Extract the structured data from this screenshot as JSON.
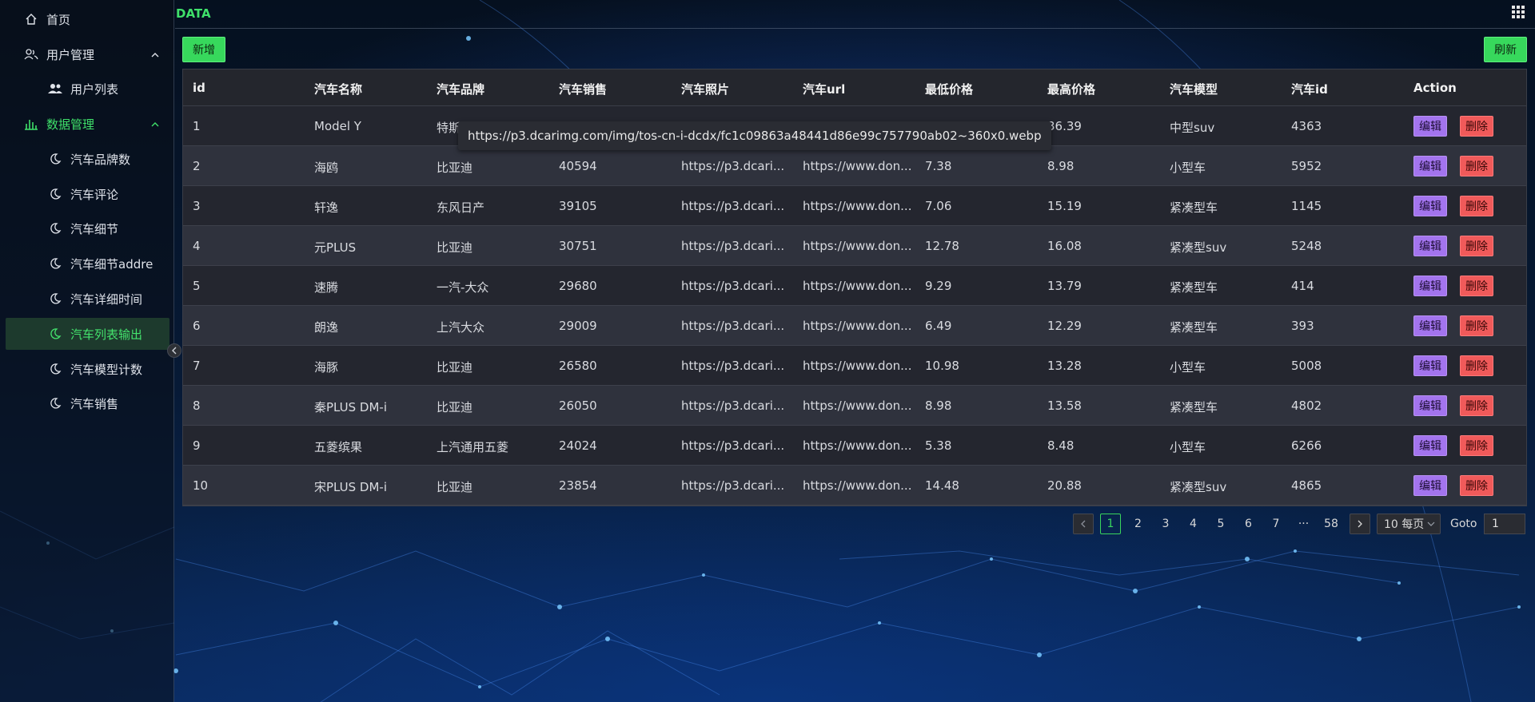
{
  "brand": "DATA",
  "sidebar": {
    "items": [
      {
        "label": "首页",
        "icon": "home-icon"
      },
      {
        "label": "用户管理",
        "icon": "users-icon"
      },
      {
        "label": "用户列表",
        "icon": "user-group-icon"
      },
      {
        "label": "数据管理",
        "icon": "bar-chart-icon"
      },
      {
        "label": "汽车品牌数",
        "icon": "moon-icon"
      },
      {
        "label": "汽车评论",
        "icon": "moon-icon"
      },
      {
        "label": "汽车细节",
        "icon": "moon-icon"
      },
      {
        "label": "汽车细节addre",
        "icon": "moon-icon"
      },
      {
        "label": "汽车详细时间",
        "icon": "moon-icon"
      },
      {
        "label": "汽车列表输出",
        "icon": "moon-icon"
      },
      {
        "label": "汽车模型计数",
        "icon": "moon-icon"
      },
      {
        "label": "汽车销售",
        "icon": "moon-icon"
      }
    ]
  },
  "toolbar": {
    "add_label": "新增",
    "refresh_label": "刷新"
  },
  "table": {
    "headers": [
      "id",
      "汽车名称",
      "汽车品牌",
      "汽车销售",
      "汽车照片",
      "汽车url",
      "最低价格",
      "最高价格",
      "汽车模型",
      "汽车id",
      "Action"
    ],
    "edit_label": "编辑",
    "delete_label": "删除",
    "rows": [
      [
        "1",
        "Model Y",
        "特斯",
        "",
        "",
        "",
        "",
        "36.39",
        "中型suv",
        "4363"
      ],
      [
        "2",
        "海鸥",
        "比亚迪",
        "40594",
        "https://p3.dcari...",
        "https://www.don...",
        "7.38",
        "8.98",
        "小型车",
        "5952"
      ],
      [
        "3",
        "轩逸",
        "东风日产",
        "39105",
        "https://p3.dcari...",
        "https://www.don...",
        "7.06",
        "15.19",
        "紧凑型车",
        "1145"
      ],
      [
        "4",
        "元PLUS",
        "比亚迪",
        "30751",
        "https://p3.dcari...",
        "https://www.don...",
        "12.78",
        "16.08",
        "紧凑型suv",
        "5248"
      ],
      [
        "5",
        "速腾",
        "一汽-大众",
        "29680",
        "https://p3.dcari...",
        "https://www.don...",
        "9.29",
        "13.79",
        "紧凑型车",
        "414"
      ],
      [
        "6",
        "朗逸",
        "上汽大众",
        "29009",
        "https://p3.dcari...",
        "https://www.don...",
        "6.49",
        "12.29",
        "紧凑型车",
        "393"
      ],
      [
        "7",
        "海豚",
        "比亚迪",
        "26580",
        "https://p3.dcari...",
        "https://www.don...",
        "10.98",
        "13.28",
        "小型车",
        "5008"
      ],
      [
        "8",
        "秦PLUS DM-i",
        "比亚迪",
        "26050",
        "https://p3.dcari...",
        "https://www.don...",
        "8.98",
        "13.58",
        "紧凑型车",
        "4802"
      ],
      [
        "9",
        "五菱缤果",
        "上汽通用五菱",
        "24024",
        "https://p3.dcari...",
        "https://www.don...",
        "5.38",
        "8.48",
        "小型车",
        "6266"
      ],
      [
        "10",
        "宋PLUS DM-i",
        "比亚迪",
        "23854",
        "https://p3.dcari...",
        "https://www.don...",
        "14.48",
        "20.88",
        "紧凑型suv",
        "4865"
      ]
    ]
  },
  "tooltip": "https://p3.dcarimg.com/img/tos-cn-i-dcdx/fc1c09863a48441d86e99c757790ab02~360x0.webp",
  "pagination": {
    "pages": [
      "1",
      "2",
      "3",
      "4",
      "5",
      "6",
      "7",
      "···",
      "58"
    ],
    "current": "1",
    "page_size": "10 每页",
    "goto_label": "Goto",
    "goto_value": "1"
  },
  "colors": {
    "accent": "#3fe06a",
    "edit": "#a374ee",
    "delete": "#f05a5a"
  }
}
